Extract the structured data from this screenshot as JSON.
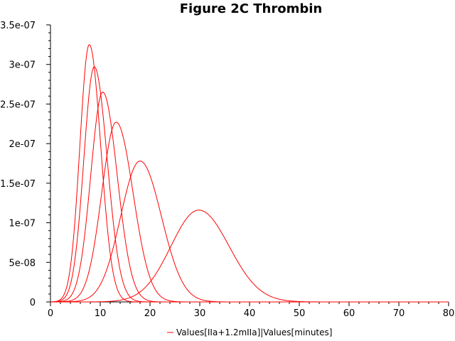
{
  "chart_data": {
    "type": "line",
    "title": "Figure 2C Thrombin",
    "xlabel": "",
    "ylabel": "",
    "xlim": [
      0,
      80
    ],
    "ylim": [
      0,
      3.5e-07
    ],
    "x_ticks": [
      0,
      10,
      20,
      30,
      40,
      50,
      60,
      70,
      80
    ],
    "x_tick_labels": [
      "0",
      "10",
      "20",
      "30",
      "40",
      "50",
      "60",
      "70",
      "80"
    ],
    "y_ticks": [
      0,
      5e-08,
      1e-07,
      1.5e-07,
      2e-07,
      2.5e-07,
      3e-07,
      3.5e-07
    ],
    "y_tick_labels": [
      "0",
      "5e-08",
      "1e-07",
      "1.5e-07",
      "2e-07",
      "2.5e-07",
      "3e-07",
      "3.5e-07"
    ],
    "grid": false,
    "legend_position": "bottom-center",
    "legend_label": "Values[IIa+1.2mIIa]|Values[minutes]",
    "series_color": "#ff0000",
    "series": [
      {
        "peak_time": 7.8,
        "peak_value": 3.25e-07,
        "rise_width": 1.9,
        "fall_width": 2.3,
        "values": [
          [
            0,
            0
          ],
          [
            1.5,
            2e-10
          ],
          [
            2.5,
            1e-09
          ],
          [
            3.5,
            6e-09
          ],
          [
            4.5,
            2.5e-08
          ],
          [
            5.5,
            8.5e-08
          ],
          [
            6.5,
            2.1e-07
          ],
          [
            7.0,
            2.7e-07
          ],
          [
            7.8,
            3.25e-07
          ],
          [
            8.5,
            3.05e-07
          ],
          [
            9.5,
            2.3e-07
          ],
          [
            10.5,
            1.45e-07
          ],
          [
            11.5,
            7.6e-08
          ],
          [
            12.5,
            3.5e-08
          ],
          [
            14,
            1e-08
          ],
          [
            16,
            2e-09
          ],
          [
            20,
            0
          ],
          [
            80,
            0
          ]
        ]
      },
      {
        "peak_time": 8.8,
        "peak_value": 2.97e-07,
        "rise_width": 2.1,
        "fall_width": 2.6,
        "values": [
          [
            0,
            0
          ],
          [
            2,
            1e-09
          ],
          [
            3,
            4e-09
          ],
          [
            4,
            1.4e-08
          ],
          [
            5,
            4.2e-08
          ],
          [
            6,
            1e-07
          ],
          [
            7,
            1.9e-07
          ],
          [
            8,
            2.7e-07
          ],
          [
            8.8,
            2.97e-07
          ],
          [
            10,
            2.6e-07
          ],
          [
            11,
            1.9e-07
          ],
          [
            12,
            1.2e-07
          ],
          [
            13.5,
            5e-08
          ],
          [
            15,
            1.6e-08
          ],
          [
            17,
            3e-09
          ],
          [
            20,
            0
          ],
          [
            80,
            0
          ]
        ]
      },
      {
        "peak_time": 10.5,
        "peak_value": 2.65e-07,
        "rise_width": 2.4,
        "fall_width": 2.9,
        "values": [
          [
            0,
            0
          ],
          [
            2,
            1e-09
          ],
          [
            3,
            2e-09
          ],
          [
            4,
            6e-09
          ],
          [
            5,
            1.5e-08
          ],
          [
            6,
            3.4e-08
          ],
          [
            7,
            6.8e-08
          ],
          [
            8,
            1.2e-07
          ],
          [
            9,
            1.85e-07
          ],
          [
            10.5,
            2.65e-07
          ],
          [
            12,
            2.25e-07
          ],
          [
            13,
            1.6e-07
          ],
          [
            14,
            1.05e-07
          ],
          [
            15.5,
            4.5e-08
          ],
          [
            17,
            1.6e-08
          ],
          [
            20,
            2e-09
          ],
          [
            24,
            0
          ],
          [
            80,
            0
          ]
        ]
      },
      {
        "peak_time": 13.2,
        "peak_value": 2.27e-07,
        "rise_width": 2.9,
        "fall_width": 3.4,
        "values": [
          [
            0,
            0
          ],
          [
            2,
            5e-10
          ],
          [
            4,
            4e-09
          ],
          [
            6,
            1.5e-08
          ],
          [
            8,
            4e-08
          ],
          [
            10,
            1e-07
          ],
          [
            11.5,
            1.7e-07
          ],
          [
            13.2,
            2.27e-07
          ],
          [
            15,
            1.95e-07
          ],
          [
            16,
            1.5e-07
          ],
          [
            17.5,
            8.5e-08
          ],
          [
            19,
            3.8e-08
          ],
          [
            21,
            1e-08
          ],
          [
            24,
            1e-09
          ],
          [
            28,
            0
          ],
          [
            80,
            0
          ]
        ]
      },
      {
        "peak_time": 18.0,
        "peak_value": 1.78e-07,
        "rise_width": 3.9,
        "fall_width": 4.3,
        "values": [
          [
            0,
            0
          ],
          [
            3,
            1e-09
          ],
          [
            6,
            6e-09
          ],
          [
            9,
            1.9e-08
          ],
          [
            12,
            4.6e-08
          ],
          [
            14,
            8e-08
          ],
          [
            16,
            1.35e-07
          ],
          [
            18,
            1.78e-07
          ],
          [
            20,
            1.6e-07
          ],
          [
            22,
            1.1e-07
          ],
          [
            24,
            5.5e-08
          ],
          [
            26,
            2e-08
          ],
          [
            29,
            3e-09
          ],
          [
            34,
            0
          ],
          [
            80,
            0
          ]
        ]
      },
      {
        "peak_time": 29.8,
        "peak_value": 1.16e-07,
        "rise_width": 5.6,
        "fall_width": 6.1,
        "values": [
          [
            0,
            0
          ],
          [
            5,
            1e-09
          ],
          [
            10,
            4e-09
          ],
          [
            15,
            1.2e-08
          ],
          [
            20,
            3e-08
          ],
          [
            24,
            6.1e-08
          ],
          [
            27,
            9.5e-08
          ],
          [
            29.8,
            1.16e-07
          ],
          [
            32,
            1.12e-07
          ],
          [
            35,
            8.6e-08
          ],
          [
            38,
            4.9e-08
          ],
          [
            41,
            1.9e-08
          ],
          [
            44,
            5e-09
          ],
          [
            48,
            1e-09
          ],
          [
            54,
            0
          ],
          [
            80,
            0
          ]
        ]
      }
    ]
  }
}
